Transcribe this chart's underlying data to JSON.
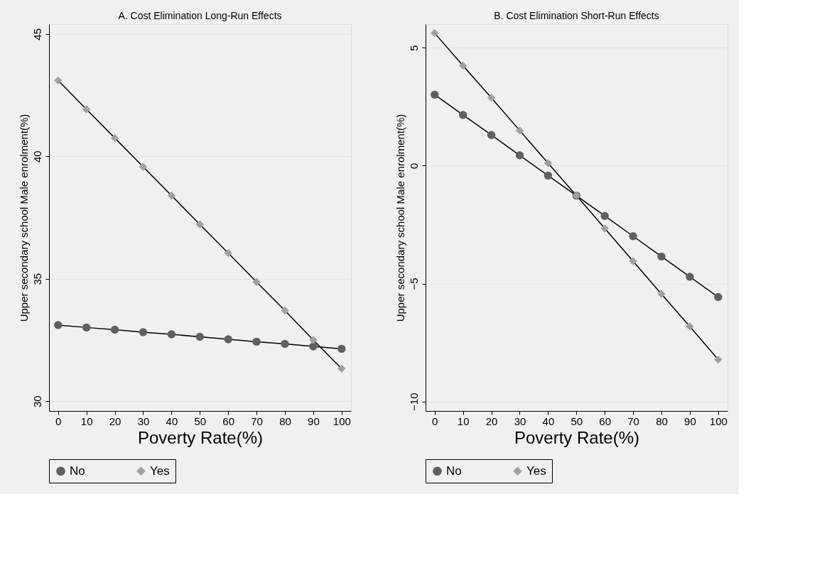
{
  "chart_data": [
    {
      "type": "line",
      "title": "A. Cost Elimination Long-Run Effects",
      "xlabel": "Poverty Rate(%)",
      "ylabel": "Upper secondary school Male enrolment(%)",
      "x": [
        0,
        10,
        20,
        30,
        40,
        50,
        60,
        70,
        80,
        90,
        100
      ],
      "series": [
        {
          "name": "No",
          "color": "#606060",
          "marker": "circle",
          "values": [
            33.11,
            33.01,
            32.92,
            32.82,
            32.73,
            32.63,
            32.53,
            32.43,
            32.34,
            32.24,
            32.14
          ]
        },
        {
          "name": "Yes",
          "color": "#a0a0a0",
          "marker": "diamond",
          "values": [
            43.1,
            41.92,
            40.75,
            39.57,
            38.4,
            37.22,
            36.05,
            34.87,
            33.7,
            32.5,
            31.33
          ]
        }
      ],
      "xlim": [
        -3.2,
        103.3
      ],
      "xticks": [
        0,
        10,
        20,
        30,
        40,
        50,
        60,
        70,
        80,
        90,
        100
      ],
      "ylim": [
        29.6,
        45.4
      ],
      "yticks": [
        30,
        35,
        40,
        45
      ],
      "grid": "y",
      "legend": "bottom",
      "line_style": "solid"
    },
    {
      "type": "line",
      "title": "B. Cost Elimination Short-Run Effects",
      "xlabel": "Poverty Rate(%)",
      "ylabel": "Upper secondary school Male enrolment(%)",
      "x": [
        0,
        10,
        20,
        30,
        40,
        50,
        60,
        70,
        80,
        90,
        100
      ],
      "series": [
        {
          "name": "No",
          "color": "#606060",
          "marker": "circle",
          "values": [
            3.01,
            2.15,
            1.3,
            0.44,
            -0.42,
            -1.27,
            -2.13,
            -2.99,
            -3.85,
            -4.71,
            -5.57
          ]
        },
        {
          "name": "Yes",
          "color": "#a0a0a0",
          "marker": "diamond",
          "values": [
            5.62,
            4.24,
            2.88,
            1.49,
            0.11,
            -1.27,
            -2.66,
            -4.05,
            -5.44,
            -6.82,
            -8.22
          ]
        }
      ],
      "xlim": [
        -3.2,
        103.3
      ],
      "xticks": [
        0,
        10,
        20,
        30,
        40,
        50,
        60,
        70,
        80,
        90,
        100
      ],
      "ylim": [
        -10.4,
        6.0
      ],
      "yticks": [
        -10,
        -5,
        0,
        5
      ],
      "grid": "y",
      "legend": "bottom",
      "line_style": "solid"
    }
  ]
}
